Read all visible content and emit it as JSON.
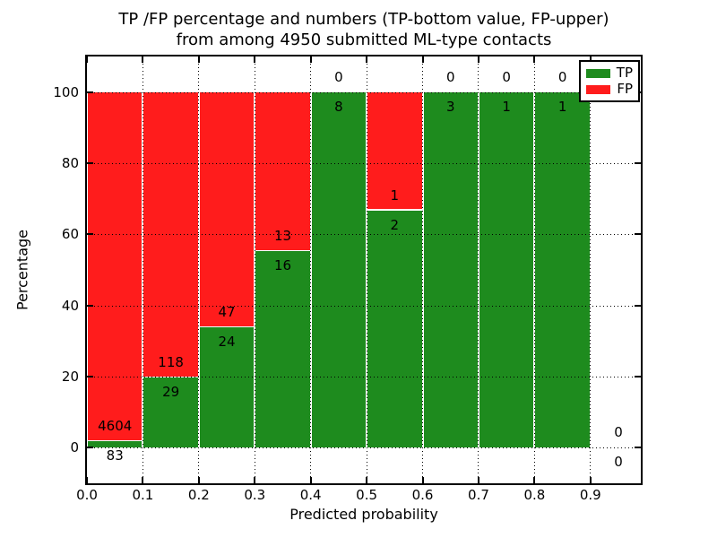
{
  "chart_data": {
    "type": "bar",
    "stacked": true,
    "title_line1": "TP /FP percentage and numbers (TP-bottom value, FP-upper)",
    "title_line2": "from among 4950 submitted ML-type contacts",
    "xlabel": "Predicted probability",
    "ylabel": "Percentage",
    "xlim": [
      0,
      0.99
    ],
    "ylim": [
      -10,
      110
    ],
    "xticks": [
      "0.0",
      "0.1",
      "0.2",
      "0.3",
      "0.4",
      "0.5",
      "0.6",
      "0.7",
      "0.8",
      "0.9"
    ],
    "yticks": [
      0,
      20,
      40,
      60,
      80,
      100
    ],
    "grid": true,
    "total_submitted": 4950,
    "colors": {
      "tp": "#1e8b1e",
      "fp": "#ff1c1c",
      "grid": "#000000",
      "text": "#000000"
    },
    "legend": {
      "position": "upper right",
      "entries": [
        {
          "label": "TP",
          "color": "#1e8b1e"
        },
        {
          "label": "FP",
          "color": "#ff1c1c"
        }
      ]
    },
    "bins": [
      {
        "range": [
          0.0,
          0.1
        ],
        "tp": 83,
        "fp": 4604,
        "tp_pct": 1.8
      },
      {
        "range": [
          0.1,
          0.2
        ],
        "tp": 29,
        "fp": 118,
        "tp_pct": 19.7
      },
      {
        "range": [
          0.2,
          0.3
        ],
        "tp": 24,
        "fp": 47,
        "tp_pct": 33.8
      },
      {
        "range": [
          0.3,
          0.4
        ],
        "tp": 16,
        "fp": 13,
        "tp_pct": 55.2
      },
      {
        "range": [
          0.4,
          0.5
        ],
        "tp": 8,
        "fp": 0,
        "tp_pct": 100
      },
      {
        "range": [
          0.5,
          0.6
        ],
        "tp": 2,
        "fp": 1,
        "tp_pct": 66.7
      },
      {
        "range": [
          0.6,
          0.7
        ],
        "tp": 3,
        "fp": 0,
        "tp_pct": 100
      },
      {
        "range": [
          0.7,
          0.8
        ],
        "tp": 1,
        "fp": 0,
        "tp_pct": 100
      },
      {
        "range": [
          0.8,
          0.9
        ],
        "tp": 1,
        "fp": 0,
        "tp_pct": 100
      },
      {
        "range": [
          0.9,
          1.0
        ],
        "tp": 0,
        "fp": 0,
        "tp_pct": 0
      }
    ]
  }
}
